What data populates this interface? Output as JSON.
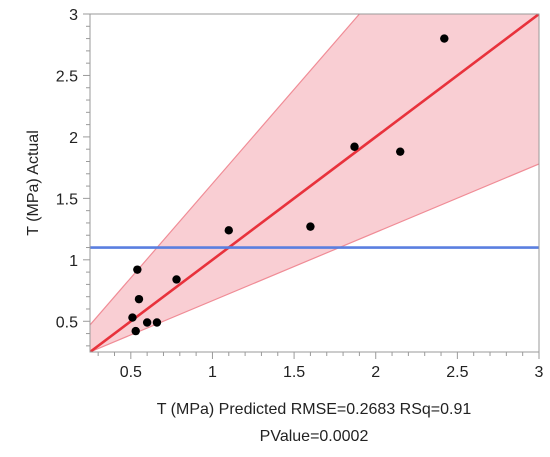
{
  "chart_data": {
    "type": "scatter",
    "title": "",
    "xlabel": "T (MPa) Predicted RMSE=0.2683 RSq=0.91",
    "xlabel_line2": "PValue=0.0002",
    "ylabel": "T (MPa) Actual",
    "xlim": [
      0.25,
      3.0
    ],
    "ylim": [
      0.25,
      3.0
    ],
    "x_ticks": [
      0.5,
      1,
      1.5,
      2,
      2.5,
      3
    ],
    "x_tick_labels": [
      "0.5",
      "1",
      "1.5",
      "2",
      "2.5",
      "3"
    ],
    "y_ticks": [
      0.5,
      1,
      1.5,
      2,
      2.5,
      3
    ],
    "y_tick_labels": [
      "0.5",
      "1",
      "1.5",
      "2",
      "2.5",
      "3"
    ],
    "grid": false,
    "points": [
      {
        "x": 0.51,
        "y": 0.53
      },
      {
        "x": 0.53,
        "y": 0.42
      },
      {
        "x": 0.54,
        "y": 0.92
      },
      {
        "x": 0.55,
        "y": 0.68
      },
      {
        "x": 0.6,
        "y": 0.49
      },
      {
        "x": 0.66,
        "y": 0.49
      },
      {
        "x": 0.78,
        "y": 0.84
      },
      {
        "x": 1.1,
        "y": 1.24
      },
      {
        "x": 1.6,
        "y": 1.27
      },
      {
        "x": 1.87,
        "y": 1.92
      },
      {
        "x": 2.15,
        "y": 1.88
      },
      {
        "x": 2.42,
        "y": 2.8
      }
    ],
    "fit_line": {
      "x": [
        0.25,
        3.0
      ],
      "y": [
        0.25,
        3.0
      ]
    },
    "mean_line": {
      "y": 1.1
    },
    "confidence_band": {
      "lower": [
        {
          "x": 0.25,
          "y": 0.25
        },
        {
          "x": 3.0,
          "y": 1.78
        }
      ],
      "upper": [
        {
          "x": 0.25,
          "y": 0.47
        },
        {
          "x": 1.9,
          "y": 3.0
        }
      ]
    },
    "colors": {
      "points": "#000000",
      "fit_line": "#e8323c",
      "band_fill": "#f6b9c0",
      "band_edge": "#f08c96",
      "mean_line": "#5a7fe0",
      "frame": "#9a9a9a"
    }
  }
}
